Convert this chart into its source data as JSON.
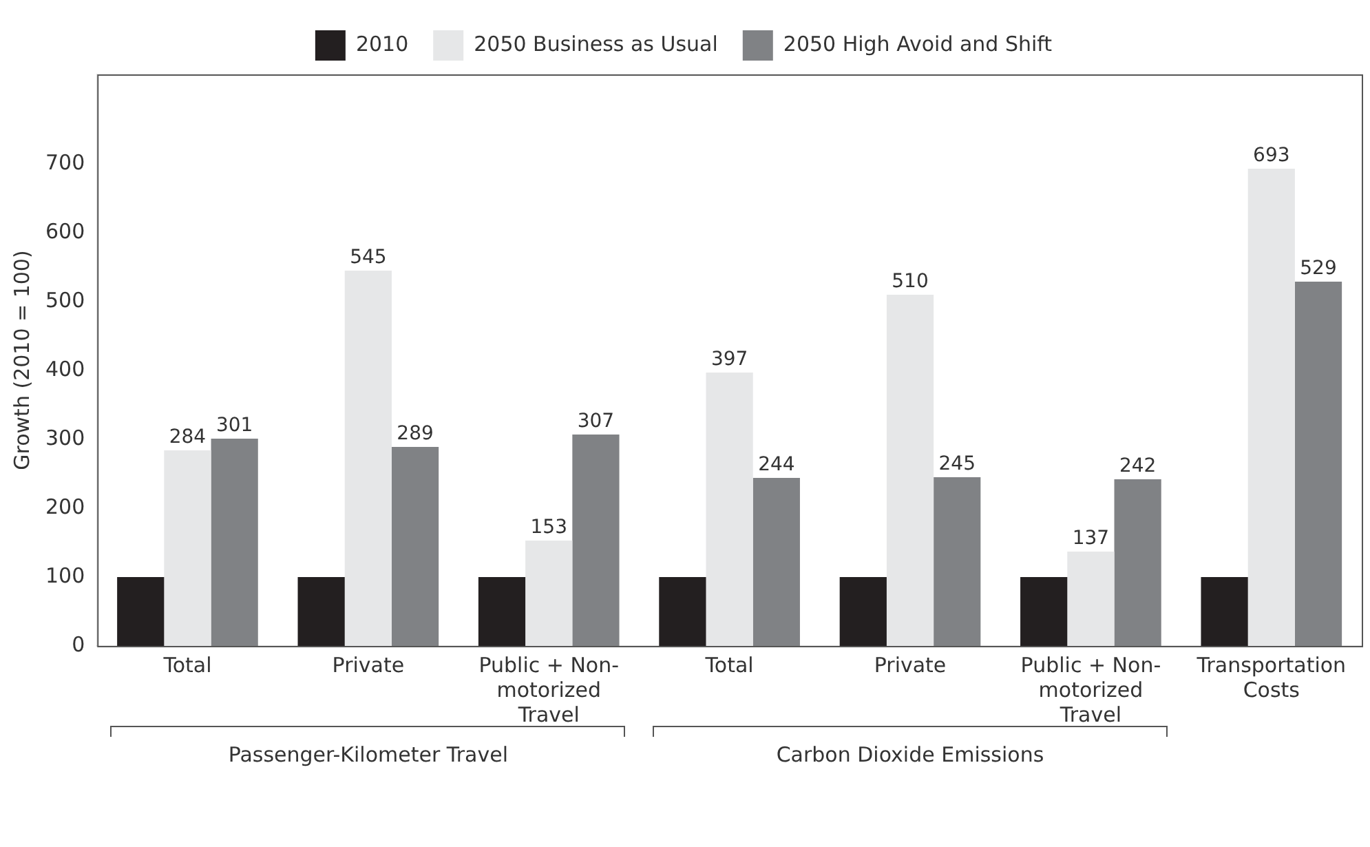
{
  "chart_data": {
    "type": "bar",
    "ylabel": "Growth (2010 = 100)",
    "categories": [
      "Total",
      "Private",
      "Public + Non-motorized Travel",
      "Total",
      "Private",
      "Public + Non-motorized Travel",
      "Transportation Costs"
    ],
    "series": [
      {
        "name": "2010",
        "color": "#231f20",
        "values": [
          100,
          100,
          100,
          100,
          100,
          100,
          100
        ]
      },
      {
        "name": "2050 Business as Usual",
        "color": "#e6e7e8",
        "values": [
          284,
          545,
          153,
          397,
          510,
          137,
          693
        ],
        "value_labels": [
          "284",
          "545",
          "153",
          "397",
          "510",
          "137",
          "693"
        ]
      },
      {
        "name": "2050 High Avoid and Shift",
        "color": "#808285",
        "values": [
          301,
          289,
          307,
          244,
          245,
          242,
          529
        ],
        "value_labels": [
          "301",
          "289",
          "307",
          "244",
          "245",
          "242",
          "529"
        ]
      }
    ],
    "ylim": [
      0,
      830
    ],
    "yticks": [
      0,
      100,
      200,
      300,
      400,
      500,
      600,
      700
    ],
    "grid": false,
    "legend": "top",
    "annotations": [
      "Passenger-Kilometer Travel",
      "Carbon Dioxide Emissions"
    ]
  }
}
